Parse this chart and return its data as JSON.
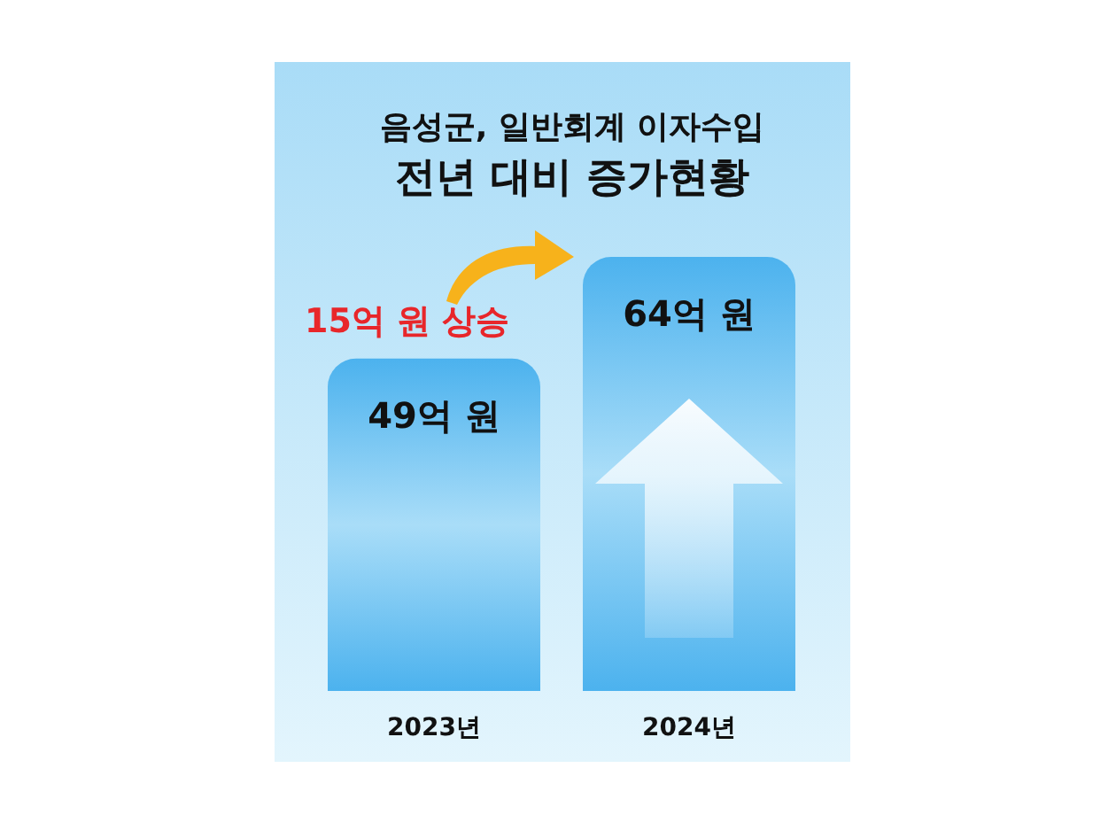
{
  "chart_data": {
    "type": "bar",
    "title": "음성군, 일반회계 이자수입",
    "subtitle": "전년 대비 증가현황",
    "categories": [
      "2023년",
      "2024년"
    ],
    "values": [
      49,
      64
    ],
    "value_labels": [
      "49억 원",
      "64억 원"
    ],
    "color": "#4cb2ee",
    "annotations": [
      "15억 원 상승"
    ]
  }
}
